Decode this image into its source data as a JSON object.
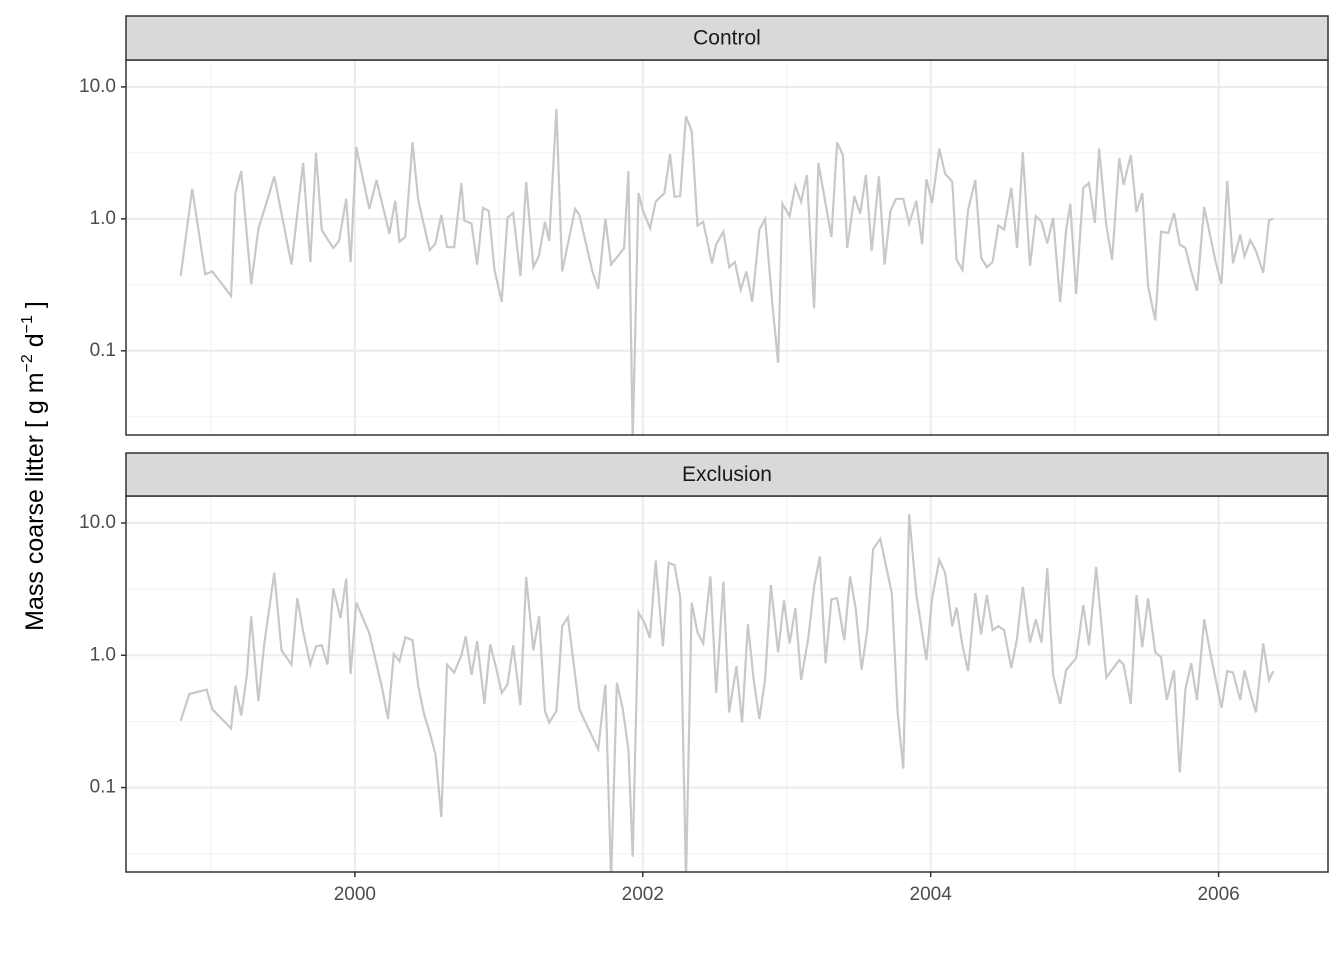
{
  "chart_data": {
    "type": "line",
    "layout": "facets",
    "log_y": true,
    "grid": true,
    "color": "#c8c8c8",
    "ylabel_parts": [
      {
        "text": "Mass coarse litter [ g m"
      },
      {
        "text": "−2",
        "sup": true
      },
      {
        "text": " d"
      },
      {
        "text": "−1",
        "sup": true
      },
      {
        "text": " ]"
      }
    ],
    "xlim": [
      1998.41,
      2006.76
    ],
    "xticks": [
      2000,
      2002,
      2004,
      2006
    ],
    "ylim": [
      0.023,
      16
    ],
    "yticks": [
      0.1,
      {
        "value": 1,
        "label": "1.0"
      },
      {
        "value": 10,
        "label": "10.0"
      }
    ],
    "series": [
      {
        "name": "Control",
        "x": [
          1998.79,
          1998.87,
          1998.96,
          1999.01,
          1999.14,
          1999.17,
          1999.21,
          1999.28,
          1999.33,
          1999.4,
          1999.44,
          1999.56,
          1999.64,
          1999.69,
          1999.73,
          1999.77,
          1999.85,
          1999.89,
          1999.94,
          1999.97,
          2000.01,
          2000.1,
          2000.15,
          2000.24,
          2000.28,
          2000.31,
          2000.35,
          2000.4,
          2000.44,
          2000.52,
          2000.56,
          2000.6,
          2000.64,
          2000.69,
          2000.74,
          2000.76,
          2000.81,
          2000.85,
          2000.89,
          2000.93,
          2000.97,
          2001.02,
          2001.06,
          2001.1,
          2001.15,
          2001.19,
          2001.24,
          2001.28,
          2001.32,
          2001.35,
          2001.4,
          2001.44,
          2001.53,
          2001.56,
          2001.65,
          2001.69,
          2001.74,
          2001.78,
          2001.87,
          2001.9,
          2001.93,
          2001.97,
          2002.0,
          2002.05,
          2002.09,
          2002.15,
          2002.19,
          2002.22,
          2002.26,
          2002.3,
          2002.34,
          2002.38,
          2002.42,
          2002.48,
          2002.51,
          2002.56,
          2002.6,
          2002.64,
          2002.68,
          2002.72,
          2002.76,
          2002.81,
          2002.85,
          2002.9,
          2002.94,
          2002.97,
          2003.02,
          2003.06,
          2003.1,
          2003.14,
          2003.19,
          2003.22,
          2003.31,
          2003.35,
          2003.39,
          2003.42,
          2003.47,
          2003.51,
          2003.55,
          2003.59,
          2003.64,
          2003.68,
          2003.72,
          2003.76,
          2003.81,
          2003.85,
          2003.9,
          2003.94,
          2003.97,
          2004.01,
          2004.06,
          2004.1,
          2004.15,
          2004.18,
          2004.22,
          2004.26,
          2004.31,
          2004.35,
          2004.39,
          2004.43,
          2004.47,
          2004.51,
          2004.56,
          2004.6,
          2004.64,
          2004.69,
          2004.73,
          2004.77,
          2004.81,
          2004.85,
          2004.9,
          2004.94,
          2004.97,
          2005.01,
          2005.06,
          2005.1,
          2005.14,
          2005.17,
          2005.22,
          2005.26,
          2005.31,
          2005.34,
          2005.39,
          2005.43,
          2005.47,
          2005.51,
          2005.56,
          2005.6,
          2005.65,
          2005.69,
          2005.73,
          2005.77,
          2005.81,
          2005.85,
          2005.9,
          2005.98,
          2006.02,
          2006.06,
          2006.1,
          2006.15,
          2006.18,
          2006.22,
          2006.26,
          2006.31,
          2006.35,
          2006.38
        ],
        "values": [
          0.37,
          1.69,
          0.38,
          0.4,
          0.26,
          1.57,
          2.3,
          0.32,
          0.84,
          1.49,
          2.1,
          0.45,
          2.65,
          0.47,
          3.16,
          0.82,
          0.6,
          0.68,
          1.42,
          0.47,
          3.5,
          1.19,
          1.97,
          0.77,
          1.37,
          0.67,
          0.73,
          3.8,
          1.39,
          0.58,
          0.65,
          1.07,
          0.61,
          0.61,
          1.87,
          0.97,
          0.92,
          0.45,
          1.21,
          1.15,
          0.41,
          0.235,
          1.02,
          1.11,
          0.37,
          1.91,
          0.43,
          0.53,
          0.95,
          0.68,
          6.8,
          0.4,
          1.19,
          1.07,
          0.4,
          0.295,
          1.0,
          0.45,
          0.6,
          2.3,
          0.021,
          1.57,
          1.17,
          0.85,
          1.35,
          1.57,
          3.1,
          1.47,
          1.49,
          6.0,
          4.6,
          0.89,
          0.95,
          0.46,
          0.64,
          0.8,
          0.43,
          0.47,
          0.29,
          0.4,
          0.235,
          0.83,
          1.0,
          0.23,
          0.081,
          1.3,
          1.05,
          1.78,
          1.35,
          2.15,
          0.21,
          2.65,
          0.73,
          3.8,
          3.05,
          0.6,
          1.49,
          1.09,
          2.15,
          0.57,
          2.1,
          0.45,
          1.15,
          1.42,
          1.42,
          0.92,
          1.37,
          0.64,
          2.0,
          1.32,
          3.4,
          2.2,
          1.91,
          0.49,
          0.41,
          1.17,
          1.97,
          0.51,
          0.43,
          0.47,
          0.89,
          0.83,
          1.72,
          0.6,
          3.2,
          0.44,
          1.05,
          0.95,
          0.65,
          1.02,
          0.235,
          0.81,
          1.3,
          0.27,
          1.72,
          1.87,
          0.93,
          3.4,
          0.89,
          0.49,
          2.9,
          1.81,
          3.05,
          1.13,
          1.57,
          0.31,
          0.17,
          0.8,
          0.78,
          1.11,
          0.64,
          0.6,
          0.4,
          0.285,
          1.23,
          0.47,
          0.32,
          1.94,
          0.46,
          0.76,
          0.52,
          0.69,
          0.57,
          0.39,
          0.98,
          1.0
        ]
      },
      {
        "name": "Exclusion",
        "x": [
          1998.79,
          1998.85,
          1998.97,
          1999.01,
          1999.14,
          1999.17,
          1999.21,
          1999.25,
          1999.28,
          1999.33,
          1999.37,
          1999.44,
          1999.49,
          1999.56,
          1999.6,
          1999.64,
          1999.69,
          1999.73,
          1999.77,
          1999.81,
          1999.85,
          1999.9,
          1999.94,
          1999.97,
          2000.01,
          2000.1,
          2000.19,
          2000.23,
          2000.27,
          2000.31,
          2000.35,
          2000.4,
          2000.44,
          2000.48,
          2000.52,
          2000.56,
          2000.6,
          2000.64,
          2000.69,
          2000.74,
          2000.77,
          2000.81,
          2000.85,
          2000.9,
          2000.94,
          2000.98,
          2001.02,
          2001.06,
          2001.1,
          2001.15,
          2001.19,
          2001.24,
          2001.28,
          2001.32,
          2001.35,
          2001.4,
          2001.44,
          2001.48,
          2001.56,
          2001.69,
          2001.74,
          2001.78,
          2001.82,
          2001.86,
          2001.9,
          2001.93,
          2001.97,
          2002.01,
          2002.05,
          2002.09,
          2002.14,
          2002.18,
          2002.22,
          2002.26,
          2002.3,
          2002.34,
          2002.38,
          2002.42,
          2002.47,
          2002.51,
          2002.56,
          2002.6,
          2002.65,
          2002.69,
          2002.73,
          2002.77,
          2002.81,
          2002.85,
          2002.89,
          2002.94,
          2002.98,
          2003.02,
          2003.06,
          2003.1,
          2003.15,
          2003.19,
          2003.23,
          2003.27,
          2003.31,
          2003.35,
          2003.4,
          2003.44,
          2003.48,
          2003.52,
          2003.56,
          2003.6,
          2003.65,
          2003.69,
          2003.73,
          2003.77,
          2003.81,
          2003.85,
          2003.9,
          2003.97,
          2004.01,
          2004.06,
          2004.1,
          2004.15,
          2004.18,
          2004.22,
          2004.26,
          2004.31,
          2004.35,
          2004.39,
          2004.43,
          2004.47,
          2004.51,
          2004.56,
          2004.6,
          2004.64,
          2004.69,
          2004.73,
          2004.77,
          2004.81,
          2004.85,
          2004.9,
          2004.94,
          2005.01,
          2005.06,
          2005.1,
          2005.15,
          2005.22,
          2005.31,
          2005.34,
          2005.39,
          2005.43,
          2005.47,
          2005.51,
          2005.56,
          2005.6,
          2005.64,
          2005.69,
          2005.73,
          2005.77,
          2005.81,
          2005.85,
          2005.9,
          2005.94,
          2006.02,
          2006.06,
          2006.1,
          2006.15,
          2006.18,
          2006.22,
          2006.26,
          2006.31,
          2006.35,
          2006.38
        ],
        "values": [
          0.32,
          0.51,
          0.55,
          0.39,
          0.28,
          0.59,
          0.35,
          0.71,
          1.97,
          0.45,
          1.21,
          4.2,
          1.09,
          0.85,
          2.7,
          1.52,
          0.85,
          1.17,
          1.19,
          0.85,
          3.2,
          1.91,
          3.8,
          0.72,
          2.5,
          1.47,
          0.56,
          0.33,
          1.02,
          0.9,
          1.37,
          1.3,
          0.59,
          0.36,
          0.26,
          0.178,
          0.06,
          0.85,
          0.74,
          1.0,
          1.39,
          0.71,
          1.28,
          0.43,
          1.21,
          0.81,
          0.52,
          0.6,
          1.19,
          0.42,
          3.9,
          1.09,
          1.97,
          0.38,
          0.31,
          0.38,
          1.66,
          1.94,
          0.39,
          0.195,
          0.6,
          0.02,
          0.62,
          0.4,
          0.195,
          0.03,
          2.1,
          1.78,
          1.35,
          5.2,
          1.17,
          5.0,
          4.8,
          2.75,
          0.02,
          2.5,
          1.49,
          1.23,
          3.95,
          0.52,
          3.6,
          0.37,
          0.83,
          0.31,
          1.72,
          0.66,
          0.33,
          0.66,
          3.4,
          1.05,
          2.6,
          1.23,
          2.27,
          0.65,
          1.35,
          3.3,
          5.6,
          0.87,
          2.65,
          2.7,
          1.3,
          3.95,
          2.23,
          0.78,
          1.57,
          6.35,
          7.6,
          4.7,
          2.95,
          0.37,
          0.139,
          11.7,
          2.9,
          0.92,
          2.7,
          5.25,
          4.2,
          1.66,
          2.3,
          1.19,
          0.76,
          2.95,
          1.44,
          2.85,
          1.55,
          1.66,
          1.55,
          0.8,
          1.35,
          3.3,
          1.25,
          1.87,
          1.25,
          4.55,
          0.71,
          0.43,
          0.77,
          0.95,
          2.4,
          1.19,
          4.65,
          0.68,
          0.92,
          0.85,
          0.43,
          2.85,
          1.15,
          2.7,
          1.05,
          0.97,
          0.46,
          0.77,
          0.13,
          0.56,
          0.87,
          0.46,
          1.87,
          1.07,
          0.4,
          0.76,
          0.74,
          0.46,
          0.77,
          0.52,
          0.37,
          1.23,
          0.65,
          0.76
        ]
      }
    ]
  }
}
